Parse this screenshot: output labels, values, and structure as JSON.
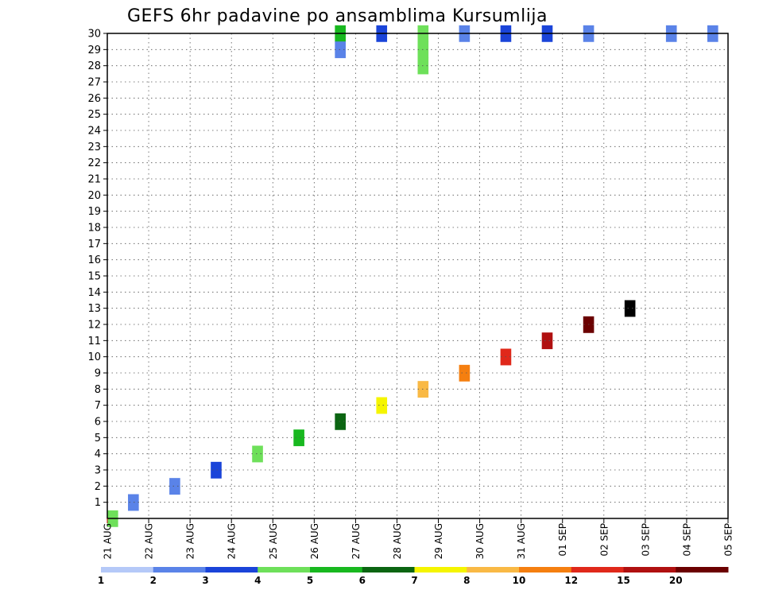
{
  "chart_data": {
    "type": "heatmap",
    "title": "GEFS 6hr padavine po ansamblima Kursumlija",
    "x_tick_labels": [
      "21 AUG",
      "22 AUG",
      "23 AUG",
      "24 AUG",
      "25 AUG",
      "26 AUG",
      "27 AUG",
      "28 AUG",
      "29 AUG",
      "30 AUG",
      "31 AUG",
      "01 SEP",
      "02 SEP",
      "03 SEP",
      "04 SEP",
      "05 SEP"
    ],
    "y_tick_labels": [
      1,
      2,
      3,
      4,
      5,
      6,
      7,
      8,
      9,
      10,
      11,
      12,
      13,
      14,
      15,
      16,
      17,
      18,
      19,
      20,
      21,
      22,
      23,
      24,
      25,
      26,
      27,
      28,
      29,
      30
    ],
    "ylim": [
      0,
      30
    ],
    "steps_per_day": 4,
    "total_steps": 60,
    "grid": "dotted",
    "colorbar": {
      "labels": [
        "1",
        "2",
        "3",
        "4",
        "5",
        "6",
        "7",
        "8",
        "10",
        "12",
        "15",
        "20"
      ],
      "colors": [
        "#b5c9f8",
        "#5a83e8",
        "#1a44d9",
        "#6ee05a",
        "#18b81f",
        "#0b6512",
        "#f5f500",
        "#f9b945",
        "#f57f10",
        "#e0281a",
        "#b01010",
        "#6b0000"
      ]
    },
    "cells": [
      [
        22,
        30,
        4
      ],
      [
        22,
        29,
        1
      ],
      [
        26,
        30,
        2
      ],
      [
        30,
        30,
        3
      ],
      [
        30,
        29,
        3
      ],
      [
        30,
        28,
        3
      ],
      [
        34,
        30,
        1
      ],
      [
        38,
        30,
        2
      ],
      [
        42,
        30,
        2
      ],
      [
        46,
        30,
        1
      ],
      [
        54,
        30,
        1
      ],
      [
        58,
        30,
        1
      ],
      [
        0,
        0,
        3
      ],
      [
        2,
        1,
        1
      ],
      [
        6,
        2,
        1
      ],
      [
        10,
        3,
        2
      ],
      [
        14,
        4,
        3
      ],
      [
        18,
        5,
        4
      ],
      [
        22,
        6,
        5
      ],
      [
        26,
        7,
        6
      ],
      [
        30,
        8,
        7
      ],
      [
        34,
        9,
        8
      ],
      [
        38,
        10,
        9
      ],
      [
        42,
        11,
        10
      ],
      [
        46,
        12,
        11
      ],
      [
        50,
        13,
        12
      ]
    ]
  }
}
